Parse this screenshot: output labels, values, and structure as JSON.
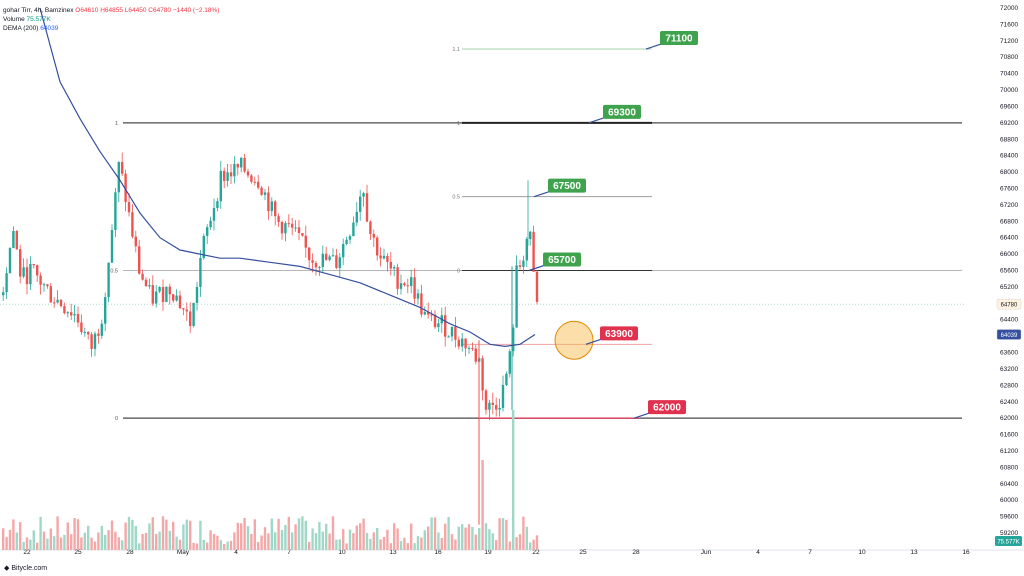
{
  "legend": {
    "symbol": "gohar Tirr, 4h, Bamzinex",
    "ohlc": "O64610  H64855  L64450  C64780  −1440 (−2.18%)",
    "volume_label": "Volume",
    "volume_value": "75.577K",
    "dema_label": "DEMA (200)",
    "dema_value": "64039"
  },
  "footer": {
    "brand": "Bitycle.com"
  },
  "colors": {
    "bull": "#26a69a",
    "bear": "#ef5350",
    "bull_vol": "#9fd8c7",
    "bear_vol": "#f3a7a7",
    "dema": "#3550a0",
    "green_label": "#3fa34d",
    "red_label": "#e0314f",
    "highlight": "#f6b640"
  },
  "y_axis": {
    "ticks": [
      "72000",
      "71600",
      "71200",
      "70800",
      "70400",
      "70000",
      "69600",
      "69200",
      "68800",
      "68400",
      "68000",
      "67600",
      "67200",
      "66800",
      "66400",
      "66000",
      "65600",
      "65200",
      "64800",
      "64400",
      "64000",
      "63600",
      "63200",
      "62800",
      "62400",
      "62000",
      "61600",
      "61200",
      "60800",
      "60400",
      "60000",
      "59600",
      "59200"
    ]
  },
  "x_axis": {
    "ticks": [
      "22",
      "25",
      "28",
      "May",
      "4",
      "7",
      "10",
      "13",
      "16",
      "19",
      "22",
      "25",
      "28",
      "Jun",
      "4",
      "7",
      "10",
      "13",
      "16"
    ]
  },
  "fib_left": {
    "labels": [
      "1",
      "0.5",
      "0"
    ],
    "values": [
      69200,
      65600,
      62000
    ]
  },
  "fib_right": {
    "labels": [
      "1.1",
      "1",
      "0.5",
      "0"
    ],
    "values": [
      71000,
      69200,
      67400,
      65600
    ]
  },
  "targets": [
    {
      "label": "71100",
      "price": 71000,
      "color": "green"
    },
    {
      "label": "69300",
      "price": 69200,
      "color": "green"
    },
    {
      "label": "67500",
      "price": 67400,
      "color": "green"
    },
    {
      "label": "65700",
      "price": 65600,
      "color": "green"
    },
    {
      "label": "63900",
      "price": 63800,
      "color": "red"
    },
    {
      "label": "62000",
      "price": 62000,
      "color": "red"
    }
  ],
  "price_boxes": [
    {
      "label": "64780",
      "price": 64780,
      "color": "#fff3e0",
      "text": "#131722"
    },
    {
      "label": "64039",
      "price": 64039,
      "color": "#3550a0",
      "text": "#ffffff"
    }
  ],
  "last_volume": "75.577K"
}
